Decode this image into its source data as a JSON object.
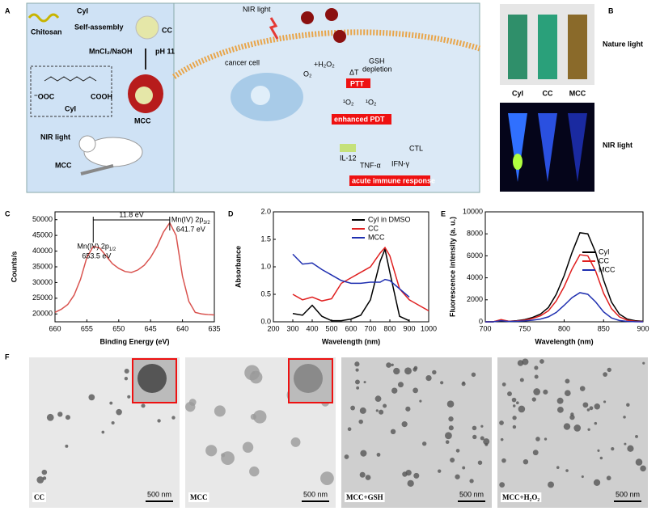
{
  "panel_labels": [
    "A",
    "B",
    "C",
    "D",
    "E",
    "F"
  ],
  "panel_a": {
    "left": {
      "chitosan": "Chitosan",
      "cyi": "CyI",
      "self_assembly": "Self-assembly",
      "cc": "CC",
      "mncl2": "MnCl₂/NaOH",
      "ph": "pH 11",
      "mcc": "MCC",
      "structure": "CyI",
      "acid1": "⁻OOC",
      "acid2": "COOH",
      "nir": "NIR light",
      "mcc_inject": "MCC"
    },
    "right": {
      "nir": "NIR light",
      "cell": "cancer cell",
      "h2o2": "+H₂O₂",
      "gsh": "GSH",
      "depletion": "depletion",
      "o2": "O₂",
      "dt": "ΔT",
      "ptt": "PTT",
      "so1": "¹O₂",
      "so2": "¹O₂",
      "pdt": "enhanced PDT",
      "il12": "IL-12",
      "tnf": "TNF-α",
      "ifn": "IFN-γ",
      "ctl": "CTL",
      "immune": "acute immune response"
    }
  },
  "panel_b": {
    "nature": "Nature light",
    "nir": "NIR light",
    "tubes": [
      "CyI",
      "CC",
      "MCC"
    ]
  },
  "panel_f": {
    "images": [
      {
        "label": "CC",
        "scale": "500 nm"
      },
      {
        "label": "MCC",
        "scale": "500 nm"
      },
      {
        "label": "MCC+GSH",
        "scale": "500 nm"
      },
      {
        "label": "MCC+H₂O₂",
        "scale": "500 nm"
      }
    ]
  },
  "chart_data": [
    {
      "type": "line",
      "xlabel": "Binding Energy (eV)",
      "ylabel": "Counts/s",
      "color": "#d9534f",
      "x": [
        660,
        659,
        658,
        657,
        656,
        655,
        654,
        653,
        652,
        651,
        650,
        649,
        648,
        647,
        646,
        645,
        644,
        643,
        642,
        641,
        640,
        639,
        638,
        637,
        636,
        635
      ],
      "values": [
        20500,
        21500,
        23000,
        26000,
        31000,
        38000,
        41500,
        41000,
        38500,
        36000,
        34500,
        33500,
        33200,
        34000,
        35500,
        38000,
        41500,
        46000,
        49000,
        45000,
        32000,
        24000,
        20500,
        20000,
        19800,
        19700
      ],
      "xlim": [
        660,
        635
      ],
      "ylim": [
        17500,
        52500
      ],
      "xticks": [
        660,
        655,
        650,
        645,
        640,
        635
      ],
      "yticks": [
        20000,
        25000,
        30000,
        35000,
        40000,
        45000,
        50000
      ],
      "annotations": {
        "gap": "11.8 eV",
        "peak1": "Mn(IV) 2p",
        "peak1_sub": "1/2",
        "peak1_energy": "653.5 eV",
        "peak2": "Mn(IV) 2p",
        "peak2_sub": "3/2",
        "peak2_energy": "641.7 eV"
      }
    },
    {
      "type": "line",
      "xlabel": "Wavelength (nm)",
      "ylabel": "Absorbance",
      "legend": "upper right",
      "x": [
        300,
        350,
        400,
        450,
        500,
        550,
        600,
        650,
        700,
        750,
        775,
        800,
        850,
        900,
        950,
        1000
      ],
      "series": [
        {
          "name": "CyI in DMSO",
          "color": "#000000",
          "values": [
            0.15,
            0.12,
            0.3,
            0.1,
            0.02,
            0.02,
            0.05,
            0.12,
            0.4,
            1.1,
            1.32,
            0.9,
            0.1,
            0.02,
            null,
            null
          ]
        },
        {
          "name": "CC",
          "color": "#e02020",
          "values": [
            0.5,
            0.4,
            0.45,
            0.38,
            0.42,
            0.7,
            0.8,
            0.9,
            1.0,
            1.25,
            1.35,
            1.2,
            0.6,
            0.4,
            0.3,
            0.2
          ]
        },
        {
          "name": "MCC",
          "color": "#1f2fb0",
          "values": [
            1.23,
            1.05,
            1.07,
            0.95,
            0.85,
            0.75,
            0.7,
            0.7,
            0.72,
            0.72,
            0.77,
            0.75,
            0.6,
            0.45,
            null,
            null
          ]
        }
      ],
      "xlim": [
        200,
        1000
      ],
      "ylim": [
        0,
        2
      ],
      "xticks": [
        200,
        300,
        400,
        500,
        600,
        700,
        800,
        900,
        1000
      ],
      "yticks": [
        {
          "value": 0,
          "label": "0.0"
        },
        0.5,
        {
          "value": 1,
          "label": "1.0"
        },
        1.5,
        {
          "value": 2,
          "label": "2.0"
        }
      ]
    },
    {
      "type": "line",
      "xlabel": "Wavelength (nm)",
      "ylabel": "Fluorescence intensity (a. u.)",
      "legend": "right",
      "x": [
        700,
        710,
        720,
        730,
        740,
        750,
        760,
        770,
        780,
        790,
        800,
        810,
        820,
        830,
        840,
        850,
        860,
        870,
        880,
        890,
        900
      ],
      "series": [
        {
          "name": "CyI",
          "color": "#000000",
          "values": [
            0,
            0,
            150,
            50,
            100,
            200,
            400,
            700,
            1300,
            2500,
            4200,
            6300,
            8100,
            8000,
            6300,
            3800,
            1800,
            700,
            250,
            100,
            50
          ]
        },
        {
          "name": "CC",
          "color": "#e02020",
          "values": [
            0,
            0,
            200,
            50,
            80,
            150,
            300,
            550,
            1000,
            1900,
            3200,
            4800,
            6100,
            6000,
            4600,
            2600,
            1200,
            450,
            150,
            50,
            20
          ]
        },
        {
          "name": "MCC",
          "color": "#1f2fb0",
          "values": [
            0,
            0,
            100,
            30,
            50,
            80,
            150,
            250,
            450,
            850,
            1500,
            2200,
            2650,
            2500,
            1800,
            900,
            350,
            120,
            40,
            10,
            0
          ]
        }
      ],
      "xlim": [
        700,
        900
      ],
      "ylim": [
        0,
        10000
      ],
      "xticks": [
        700,
        750,
        800,
        850,
        900
      ],
      "yticks": [
        0,
        2000,
        4000,
        6000,
        8000,
        10000
      ]
    }
  ]
}
